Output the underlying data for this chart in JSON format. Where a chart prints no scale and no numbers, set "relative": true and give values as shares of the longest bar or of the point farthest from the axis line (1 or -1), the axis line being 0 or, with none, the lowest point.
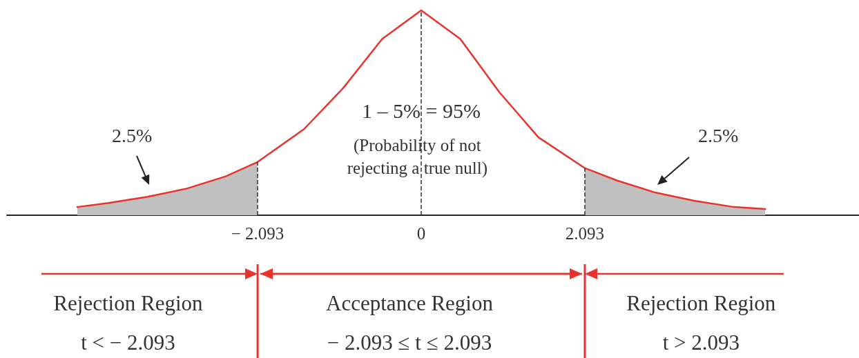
{
  "chart_data": {
    "type": "line",
    "relative": true,
    "marker": "none",
    "xlim": [
      -5.3,
      5.6
    ],
    "xticks": [
      {
        "value": -2.093,
        "label": "− 2.093"
      },
      0,
      2.093
    ],
    "series": [
      {
        "type": "area",
        "color": "#c0c0c0",
        "x": [
          -4.4,
          -4,
          -3.5,
          -3,
          -2.5,
          -2.093
        ],
        "values": [
          0.04,
          0.06,
          0.09,
          0.13,
          0.19,
          0.26
        ]
      },
      {
        "type": "area",
        "color": "#c0c0c0",
        "x": [
          2.093,
          2.5,
          3,
          3.5,
          4,
          4.4
        ],
        "values": [
          0.23,
          0.17,
          0.11,
          0.07,
          0.04,
          0.03
        ]
      },
      {
        "color": "#e8322b",
        "x": [
          -4.4,
          -4,
          -3.5,
          -3,
          -2.5,
          -2.093,
          -1.5,
          -1,
          -0.5,
          0,
          0.5,
          1,
          1.5,
          2.093,
          2.5,
          3,
          3.5,
          4,
          4.4
        ],
        "values": [
          0.04,
          0.06,
          0.09,
          0.13,
          0.19,
          0.26,
          0.42,
          0.62,
          0.86,
          1,
          0.86,
          0.6,
          0.38,
          0.23,
          0.17,
          0.11,
          0.07,
          0.04,
          0.03
        ]
      }
    ],
    "ref_lines": [
      {
        "axis": "x",
        "value": -2.093,
        "color": "#333333",
        "line_style": "dashed"
      },
      {
        "axis": "x",
        "value": 0,
        "color": "#333333",
        "line_style": "dashed"
      },
      {
        "axis": "x",
        "value": 2.093,
        "color": "#333333",
        "line_style": "dashed"
      }
    ],
    "annotations": [
      "1 – 5% = 95%",
      "(Probability of not rejecting a true null)",
      "2.5%",
      "2.5%",
      "Rejection Region",
      "t < − 2.093",
      "Acceptance Region",
      "− 2.093 ≤ t ≤ 2.093",
      "Rejection Region",
      "t > 2.093"
    ]
  }
}
